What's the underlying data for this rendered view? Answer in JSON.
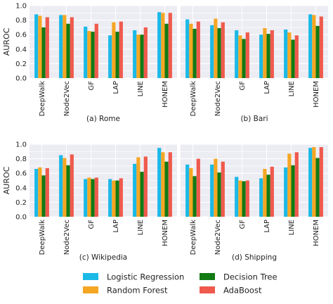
{
  "figure": {
    "legend": [
      {
        "name": "Logistic Regression",
        "color": "#1bb9e6"
      },
      {
        "name": "Random Forest",
        "color": "#f5a623"
      },
      {
        "name": "Decision Tree",
        "color": "#137a14"
      },
      {
        "name": "AdaBoost",
        "color": "#ef5a4c"
      }
    ],
    "background": "#ececf3",
    "grid_color": "#ffffff"
  },
  "chart_data": [
    {
      "type": "bar",
      "title": "(a) Rome",
      "ylabel": "AUROC",
      "ylim": [
        0,
        1.0
      ],
      "yticks": [
        "0.0",
        "0.2",
        "0.4",
        "0.6",
        "0.8",
        "1.0"
      ],
      "grid": true,
      "categories": [
        "DeepWalk",
        "Node2Vec",
        "GF",
        "LAP",
        "LINE",
        "HONEM"
      ],
      "series": [
        {
          "name": "Logistic Regression",
          "values": [
            0.88,
            0.87,
            0.71,
            0.59,
            0.66,
            0.91
          ]
        },
        {
          "name": "Random Forest",
          "values": [
            0.86,
            0.87,
            0.65,
            0.77,
            0.6,
            0.9
          ]
        },
        {
          "name": "Decision Tree",
          "values": [
            0.7,
            0.75,
            0.64,
            0.64,
            0.6,
            0.75
          ]
        },
        {
          "name": "AdaBoost",
          "values": [
            0.84,
            0.84,
            0.75,
            0.78,
            0.7,
            0.9
          ]
        }
      ]
    },
    {
      "type": "bar",
      "title": "(b) Bari",
      "ylabel": "",
      "ylim": [
        0,
        1.0
      ],
      "yticks": [],
      "grid": true,
      "categories": [
        "DeepWalk",
        "Node2Vec",
        "GF",
        "LAP",
        "LINE",
        "HONEM"
      ],
      "series": [
        {
          "name": "Logistic Regression",
          "values": [
            0.81,
            0.73,
            0.66,
            0.6,
            0.67,
            0.88
          ]
        },
        {
          "name": "Random Forest",
          "values": [
            0.75,
            0.82,
            0.59,
            0.69,
            0.63,
            0.87
          ]
        },
        {
          "name": "Decision Tree",
          "values": [
            0.68,
            0.69,
            0.54,
            0.61,
            0.53,
            0.72
          ]
        },
        {
          "name": "AdaBoost",
          "values": [
            0.78,
            0.77,
            0.63,
            0.66,
            0.59,
            0.85
          ]
        }
      ]
    },
    {
      "type": "bar",
      "title": "(c) Wikipedia",
      "ylabel": "AUROC",
      "ylim": [
        0,
        1.0
      ],
      "yticks": [
        "0.0",
        "0.2",
        "0.4",
        "0.6",
        "0.8",
        "1.0"
      ],
      "grid": true,
      "categories": [
        "DeepWalk",
        "Node2Vec",
        "GF",
        "LAP",
        "LINE",
        "HONEM"
      ],
      "series": [
        {
          "name": "Logistic Regression",
          "values": [
            0.66,
            0.85,
            0.52,
            0.52,
            0.73,
            0.95
          ]
        },
        {
          "name": "Random Forest",
          "values": [
            0.68,
            0.81,
            0.54,
            0.5,
            0.82,
            0.89
          ]
        },
        {
          "name": "Decision Tree",
          "values": [
            0.57,
            0.71,
            0.52,
            0.5,
            0.62,
            0.76
          ]
        },
        {
          "name": "AdaBoost",
          "values": [
            0.67,
            0.86,
            0.54,
            0.53,
            0.83,
            0.89
          ]
        }
      ]
    },
    {
      "type": "bar",
      "title": "(d) Shipping",
      "ylabel": "",
      "ylim": [
        0,
        1.0
      ],
      "yticks": [],
      "grid": true,
      "categories": [
        "DeepWalk",
        "Node2Vec",
        "GF",
        "LAP",
        "LINE",
        "HONEM"
      ],
      "series": [
        {
          "name": "Logistic Regression",
          "values": [
            0.72,
            0.72,
            0.55,
            0.53,
            0.68,
            0.95
          ]
        },
        {
          "name": "Random Forest",
          "values": [
            0.67,
            0.8,
            0.5,
            0.66,
            0.87,
            0.96
          ]
        },
        {
          "name": "Decision Tree",
          "values": [
            0.56,
            0.61,
            0.49,
            0.58,
            0.71,
            0.81
          ]
        },
        {
          "name": "AdaBoost",
          "values": [
            0.8,
            0.76,
            0.5,
            0.69,
            0.89,
            0.96
          ]
        }
      ]
    }
  ]
}
